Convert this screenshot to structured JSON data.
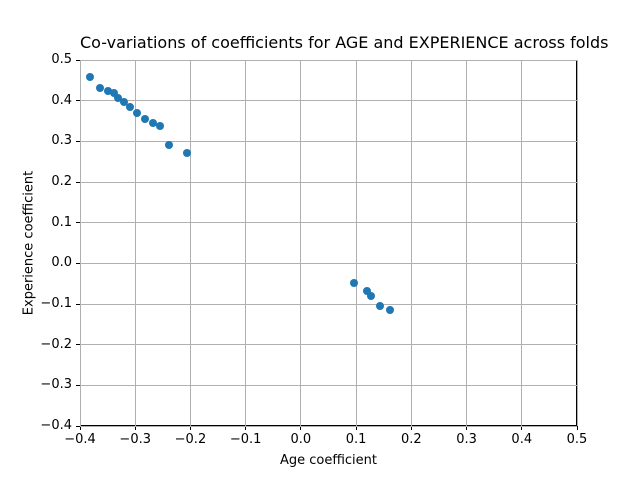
{
  "chart_data": {
    "type": "scatter",
    "title": "Co-variations of coefficients for AGE and EXPERIENCE across folds",
    "xlabel": "Age coefficient",
    "ylabel": "Experience coefficient",
    "xlim": [
      -0.4,
      0.5
    ],
    "ylim": [
      -0.4,
      0.5
    ],
    "xticks": [
      -0.4,
      -0.3,
      -0.2,
      -0.1,
      0.0,
      0.1,
      0.2,
      0.3,
      0.4,
      0.5
    ],
    "yticks": [
      -0.4,
      -0.3,
      -0.2,
      -0.1,
      0.0,
      0.1,
      0.2,
      0.3,
      0.4,
      0.5
    ],
    "xtick_labels": [
      "−0.4",
      "−0.3",
      "−0.2",
      "−0.1",
      "0.0",
      "0.1",
      "0.2",
      "0.3",
      "0.4",
      "0.5"
    ],
    "ytick_labels": [
      "−0.4",
      "−0.3",
      "−0.2",
      "−0.1",
      "0.0",
      "0.1",
      "0.2",
      "0.3",
      "0.4",
      "0.5"
    ],
    "grid": true,
    "legend": false,
    "marker_color": "#1f77b4",
    "grid_color": "#b0b0b0",
    "points": [
      {
        "x": -0.382,
        "y": 0.458
      },
      {
        "x": -0.363,
        "y": 0.43
      },
      {
        "x": -0.35,
        "y": 0.424
      },
      {
        "x": -0.338,
        "y": 0.419
      },
      {
        "x": -0.331,
        "y": 0.407
      },
      {
        "x": -0.32,
        "y": 0.396
      },
      {
        "x": -0.31,
        "y": 0.385
      },
      {
        "x": -0.296,
        "y": 0.37
      },
      {
        "x": -0.282,
        "y": 0.355
      },
      {
        "x": -0.268,
        "y": 0.346
      },
      {
        "x": -0.255,
        "y": 0.338
      },
      {
        "x": -0.238,
        "y": 0.292
      },
      {
        "x": -0.207,
        "y": 0.272
      },
      {
        "x": 0.096,
        "y": -0.048
      },
      {
        "x": 0.119,
        "y": -0.068
      },
      {
        "x": 0.127,
        "y": -0.08
      },
      {
        "x": 0.144,
        "y": -0.104
      },
      {
        "x": 0.162,
        "y": -0.114
      }
    ]
  }
}
